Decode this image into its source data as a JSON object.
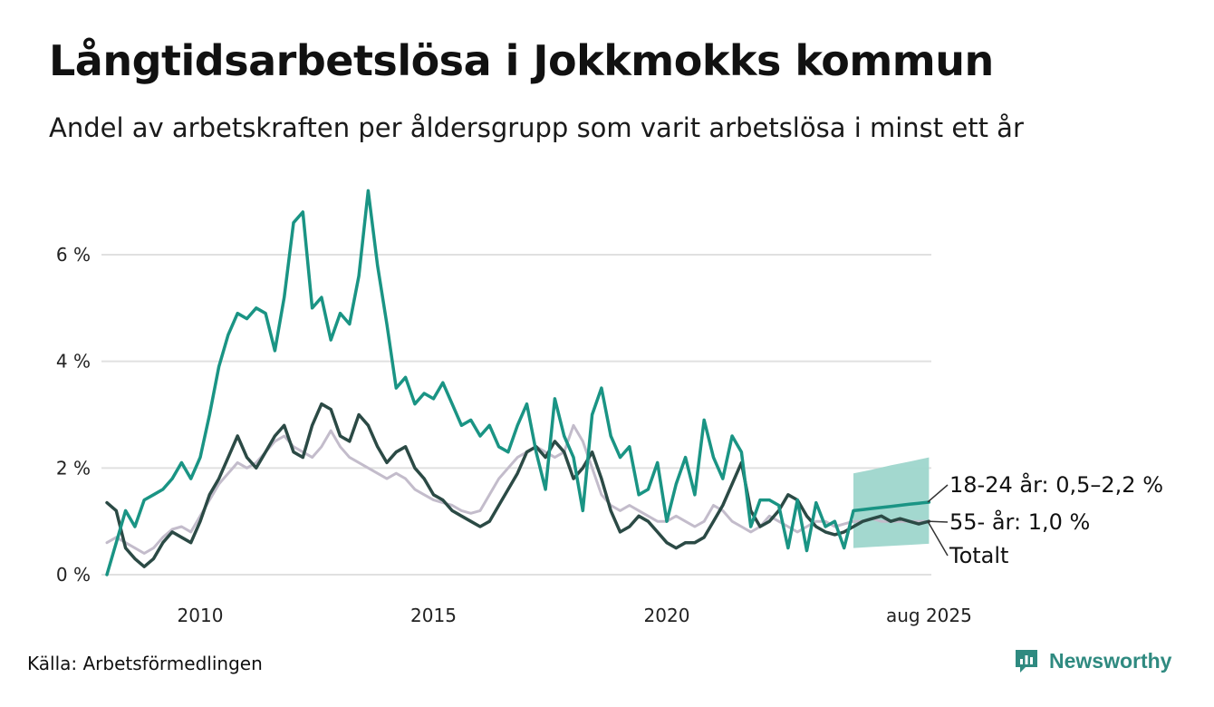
{
  "header": {
    "title": "Långtidsarbetslösa i Jokkmokks kommun",
    "subtitle": "Andel av arbetskraften per åldersgrupp som varit arbetslösa i minst ett år"
  },
  "footer": {
    "source": "Källa: Arbetsförmedlingen",
    "brand": "Newsworthy"
  },
  "colors": {
    "young": "#1a9484",
    "old": "#2b4a45",
    "total": "#c3bccb",
    "band": "#9ed6cc",
    "grid": "#e0e0e0"
  },
  "chart_data": {
    "type": "line",
    "ylim": [
      0,
      7.5
    ],
    "xlim": [
      2008.0,
      2025.67
    ],
    "y_ticks": [
      {
        "value": 0,
        "label": "0 %"
      },
      {
        "value": 2,
        "label": "2 %"
      },
      {
        "value": 4,
        "label": "4 %"
      },
      {
        "value": 6,
        "label": "6 %"
      }
    ],
    "x_ticks": [
      {
        "value": 2010,
        "label": "2010"
      },
      {
        "value": 2015,
        "label": "2015"
      },
      {
        "value": 2020,
        "label": "2020"
      },
      {
        "value": 2025.62,
        "label": "aug 2025"
      }
    ],
    "series": [
      {
        "key": "total",
        "name": "Totalt",
        "points": [
          [
            2008.0,
            0.6
          ],
          [
            2008.2,
            0.7
          ],
          [
            2008.4,
            0.6
          ],
          [
            2008.6,
            0.5
          ],
          [
            2008.8,
            0.4
          ],
          [
            2009.0,
            0.5
          ],
          [
            2009.2,
            0.7
          ],
          [
            2009.4,
            0.85
          ],
          [
            2009.6,
            0.9
          ],
          [
            2009.8,
            0.8
          ],
          [
            2010.0,
            1.1
          ],
          [
            2010.2,
            1.4
          ],
          [
            2010.4,
            1.7
          ],
          [
            2010.6,
            1.9
          ],
          [
            2010.8,
            2.1
          ],
          [
            2011.0,
            2.0
          ],
          [
            2011.2,
            2.1
          ],
          [
            2011.4,
            2.3
          ],
          [
            2011.6,
            2.5
          ],
          [
            2011.8,
            2.6
          ],
          [
            2012.0,
            2.4
          ],
          [
            2012.2,
            2.3
          ],
          [
            2012.4,
            2.2
          ],
          [
            2012.6,
            2.4
          ],
          [
            2012.8,
            2.7
          ],
          [
            2013.0,
            2.4
          ],
          [
            2013.2,
            2.2
          ],
          [
            2013.4,
            2.1
          ],
          [
            2013.6,
            2.0
          ],
          [
            2013.8,
            1.9
          ],
          [
            2014.0,
            1.8
          ],
          [
            2014.2,
            1.9
          ],
          [
            2014.4,
            1.8
          ],
          [
            2014.6,
            1.6
          ],
          [
            2014.8,
            1.5
          ],
          [
            2015.0,
            1.4
          ],
          [
            2015.2,
            1.35
          ],
          [
            2015.4,
            1.3
          ],
          [
            2015.6,
            1.2
          ],
          [
            2015.8,
            1.15
          ],
          [
            2016.0,
            1.2
          ],
          [
            2016.2,
            1.5
          ],
          [
            2016.4,
            1.8
          ],
          [
            2016.6,
            2.0
          ],
          [
            2016.8,
            2.2
          ],
          [
            2017.0,
            2.3
          ],
          [
            2017.2,
            2.4
          ],
          [
            2017.4,
            2.3
          ],
          [
            2017.6,
            2.2
          ],
          [
            2017.8,
            2.3
          ],
          [
            2018.0,
            2.8
          ],
          [
            2018.2,
            2.5
          ],
          [
            2018.4,
            2.0
          ],
          [
            2018.6,
            1.5
          ],
          [
            2018.8,
            1.3
          ],
          [
            2019.0,
            1.2
          ],
          [
            2019.2,
            1.3
          ],
          [
            2019.4,
            1.2
          ],
          [
            2019.6,
            1.1
          ],
          [
            2019.8,
            1.0
          ],
          [
            2020.0,
            1.0
          ],
          [
            2020.2,
            1.1
          ],
          [
            2020.4,
            1.0
          ],
          [
            2020.6,
            0.9
          ],
          [
            2020.8,
            1.0
          ],
          [
            2021.0,
            1.3
          ],
          [
            2021.2,
            1.2
          ],
          [
            2021.4,
            1.0
          ],
          [
            2021.6,
            0.9
          ],
          [
            2021.8,
            0.8
          ],
          [
            2022.0,
            0.9
          ],
          [
            2022.2,
            1.1
          ],
          [
            2022.4,
            1.0
          ],
          [
            2022.6,
            0.9
          ],
          [
            2022.8,
            0.8
          ],
          [
            2023.0,
            0.9
          ],
          [
            2023.2,
            1.0
          ],
          [
            2023.4,
            1.0
          ],
          [
            2023.6,
            0.9
          ],
          [
            2023.8,
            0.95
          ],
          [
            2024.0,
            1.0
          ],
          [
            2024.2,
            1.0
          ],
          [
            2024.4,
            1.05
          ],
          [
            2024.6,
            1.0
          ],
          [
            2024.8,
            1.0
          ],
          [
            2025.0,
            1.0
          ],
          [
            2025.2,
            1.0
          ],
          [
            2025.4,
            1.0
          ],
          [
            2025.62,
            1.0
          ]
        ]
      },
      {
        "key": "old",
        "name": "55- år",
        "points": [
          [
            2008.0,
            1.35
          ],
          [
            2008.2,
            1.2
          ],
          [
            2008.4,
            0.5
          ],
          [
            2008.6,
            0.3
          ],
          [
            2008.8,
            0.15
          ],
          [
            2009.0,
            0.3
          ],
          [
            2009.2,
            0.6
          ],
          [
            2009.4,
            0.8
          ],
          [
            2009.6,
            0.7
          ],
          [
            2009.8,
            0.6
          ],
          [
            2010.0,
            1.0
          ],
          [
            2010.2,
            1.5
          ],
          [
            2010.4,
            1.8
          ],
          [
            2010.6,
            2.2
          ],
          [
            2010.8,
            2.6
          ],
          [
            2011.0,
            2.2
          ],
          [
            2011.2,
            2.0
          ],
          [
            2011.4,
            2.3
          ],
          [
            2011.6,
            2.6
          ],
          [
            2011.8,
            2.8
          ],
          [
            2012.0,
            2.3
          ],
          [
            2012.2,
            2.2
          ],
          [
            2012.4,
            2.8
          ],
          [
            2012.6,
            3.2
          ],
          [
            2012.8,
            3.1
          ],
          [
            2013.0,
            2.6
          ],
          [
            2013.2,
            2.5
          ],
          [
            2013.4,
            3.0
          ],
          [
            2013.6,
            2.8
          ],
          [
            2013.8,
            2.4
          ],
          [
            2014.0,
            2.1
          ],
          [
            2014.2,
            2.3
          ],
          [
            2014.4,
            2.4
          ],
          [
            2014.6,
            2.0
          ],
          [
            2014.8,
            1.8
          ],
          [
            2015.0,
            1.5
          ],
          [
            2015.2,
            1.4
          ],
          [
            2015.4,
            1.2
          ],
          [
            2015.6,
            1.1
          ],
          [
            2015.8,
            1.0
          ],
          [
            2016.0,
            0.9
          ],
          [
            2016.2,
            1.0
          ],
          [
            2016.4,
            1.3
          ],
          [
            2016.6,
            1.6
          ],
          [
            2016.8,
            1.9
          ],
          [
            2017.0,
            2.3
          ],
          [
            2017.2,
            2.4
          ],
          [
            2017.4,
            2.2
          ],
          [
            2017.6,
            2.5
          ],
          [
            2017.8,
            2.3
          ],
          [
            2018.0,
            1.8
          ],
          [
            2018.2,
            2.0
          ],
          [
            2018.4,
            2.3
          ],
          [
            2018.6,
            1.8
          ],
          [
            2018.8,
            1.2
          ],
          [
            2019.0,
            0.8
          ],
          [
            2019.2,
            0.9
          ],
          [
            2019.4,
            1.1
          ],
          [
            2019.6,
            1.0
          ],
          [
            2019.8,
            0.8
          ],
          [
            2020.0,
            0.6
          ],
          [
            2020.2,
            0.5
          ],
          [
            2020.4,
            0.6
          ],
          [
            2020.6,
            0.6
          ],
          [
            2020.8,
            0.7
          ],
          [
            2021.0,
            1.0
          ],
          [
            2021.2,
            1.3
          ],
          [
            2021.4,
            1.7
          ],
          [
            2021.6,
            2.1
          ],
          [
            2021.8,
            1.2
          ],
          [
            2022.0,
            0.9
          ],
          [
            2022.2,
            1.0
          ],
          [
            2022.4,
            1.2
          ],
          [
            2022.6,
            1.5
          ],
          [
            2022.8,
            1.4
          ],
          [
            2023.0,
            1.1
          ],
          [
            2023.2,
            0.9
          ],
          [
            2023.4,
            0.8
          ],
          [
            2023.6,
            0.75
          ],
          [
            2023.8,
            0.8
          ],
          [
            2024.0,
            0.9
          ],
          [
            2024.2,
            1.0
          ],
          [
            2024.4,
            1.05
          ],
          [
            2024.6,
            1.1
          ],
          [
            2024.8,
            1.0
          ],
          [
            2025.0,
            1.05
          ],
          [
            2025.2,
            1.0
          ],
          [
            2025.4,
            0.95
          ],
          [
            2025.62,
            1.0
          ]
        ]
      },
      {
        "key": "young",
        "name": "18-24 år",
        "points": [
          [
            2008.0,
            0.0
          ],
          [
            2008.2,
            0.6
          ],
          [
            2008.4,
            1.2
          ],
          [
            2008.6,
            0.9
          ],
          [
            2008.8,
            1.4
          ],
          [
            2009.0,
            1.5
          ],
          [
            2009.2,
            1.6
          ],
          [
            2009.4,
            1.8
          ],
          [
            2009.6,
            2.1
          ],
          [
            2009.8,
            1.8
          ],
          [
            2010.0,
            2.2
          ],
          [
            2010.2,
            3.0
          ],
          [
            2010.4,
            3.9
          ],
          [
            2010.6,
            4.5
          ],
          [
            2010.8,
            4.9
          ],
          [
            2011.0,
            4.8
          ],
          [
            2011.2,
            5.0
          ],
          [
            2011.4,
            4.9
          ],
          [
            2011.6,
            4.2
          ],
          [
            2011.8,
            5.2
          ],
          [
            2012.0,
            6.6
          ],
          [
            2012.2,
            6.8
          ],
          [
            2012.4,
            5.0
          ],
          [
            2012.6,
            5.2
          ],
          [
            2012.8,
            4.4
          ],
          [
            2013.0,
            4.9
          ],
          [
            2013.2,
            4.7
          ],
          [
            2013.4,
            5.6
          ],
          [
            2013.6,
            7.2
          ],
          [
            2013.8,
            5.8
          ],
          [
            2014.0,
            4.7
          ],
          [
            2014.2,
            3.5
          ],
          [
            2014.4,
            3.7
          ],
          [
            2014.6,
            3.2
          ],
          [
            2014.8,
            3.4
          ],
          [
            2015.0,
            3.3
          ],
          [
            2015.2,
            3.6
          ],
          [
            2015.4,
            3.2
          ],
          [
            2015.6,
            2.8
          ],
          [
            2015.8,
            2.9
          ],
          [
            2016.0,
            2.6
          ],
          [
            2016.2,
            2.8
          ],
          [
            2016.4,
            2.4
          ],
          [
            2016.6,
            2.3
          ],
          [
            2016.8,
            2.8
          ],
          [
            2017.0,
            3.2
          ],
          [
            2017.2,
            2.3
          ],
          [
            2017.4,
            1.6
          ],
          [
            2017.6,
            3.3
          ],
          [
            2017.8,
            2.6
          ],
          [
            2018.0,
            2.2
          ],
          [
            2018.2,
            1.2
          ],
          [
            2018.4,
            3.0
          ],
          [
            2018.6,
            3.5
          ],
          [
            2018.8,
            2.6
          ],
          [
            2019.0,
            2.2
          ],
          [
            2019.2,
            2.4
          ],
          [
            2019.4,
            1.5
          ],
          [
            2019.6,
            1.6
          ],
          [
            2019.8,
            2.1
          ],
          [
            2020.0,
            1.0
          ],
          [
            2020.2,
            1.7
          ],
          [
            2020.4,
            2.2
          ],
          [
            2020.6,
            1.5
          ],
          [
            2020.8,
            2.9
          ],
          [
            2021.0,
            2.2
          ],
          [
            2021.2,
            1.8
          ],
          [
            2021.4,
            2.6
          ],
          [
            2021.6,
            2.3
          ],
          [
            2021.8,
            0.9
          ],
          [
            2022.0,
            1.4
          ],
          [
            2022.2,
            1.4
          ],
          [
            2022.4,
            1.3
          ],
          [
            2022.6,
            0.5
          ],
          [
            2022.8,
            1.4
          ],
          [
            2023.0,
            0.45
          ],
          [
            2023.2,
            1.35
          ],
          [
            2023.4,
            0.9
          ],
          [
            2023.6,
            1.0
          ],
          [
            2023.8,
            0.5
          ],
          [
            2024.0,
            1.2
          ],
          [
            2024.2,
            1.22
          ],
          [
            2024.4,
            1.24
          ],
          [
            2024.6,
            1.26
          ],
          [
            2024.8,
            1.28
          ],
          [
            2025.0,
            1.3
          ],
          [
            2025.2,
            1.32
          ],
          [
            2025.4,
            1.34
          ],
          [
            2025.62,
            1.36
          ]
        ]
      }
    ],
    "band": {
      "upper": [
        [
          2024.0,
          1.9
        ],
        [
          2024.4,
          1.97
        ],
        [
          2024.8,
          2.05
        ],
        [
          2025.2,
          2.12
        ],
        [
          2025.62,
          2.2
        ]
      ],
      "lower": [
        [
          2024.0,
          0.5
        ],
        [
          2024.4,
          0.52
        ],
        [
          2024.8,
          0.54
        ],
        [
          2025.2,
          0.56
        ],
        [
          2025.62,
          0.58
        ]
      ]
    },
    "annotations": [
      {
        "key": "young",
        "text": "18-24 år: 0,5–2,2 %"
      },
      {
        "key": "old",
        "text": "55- år: 1,0 %"
      },
      {
        "key": "total",
        "text": "Totalt"
      }
    ]
  }
}
